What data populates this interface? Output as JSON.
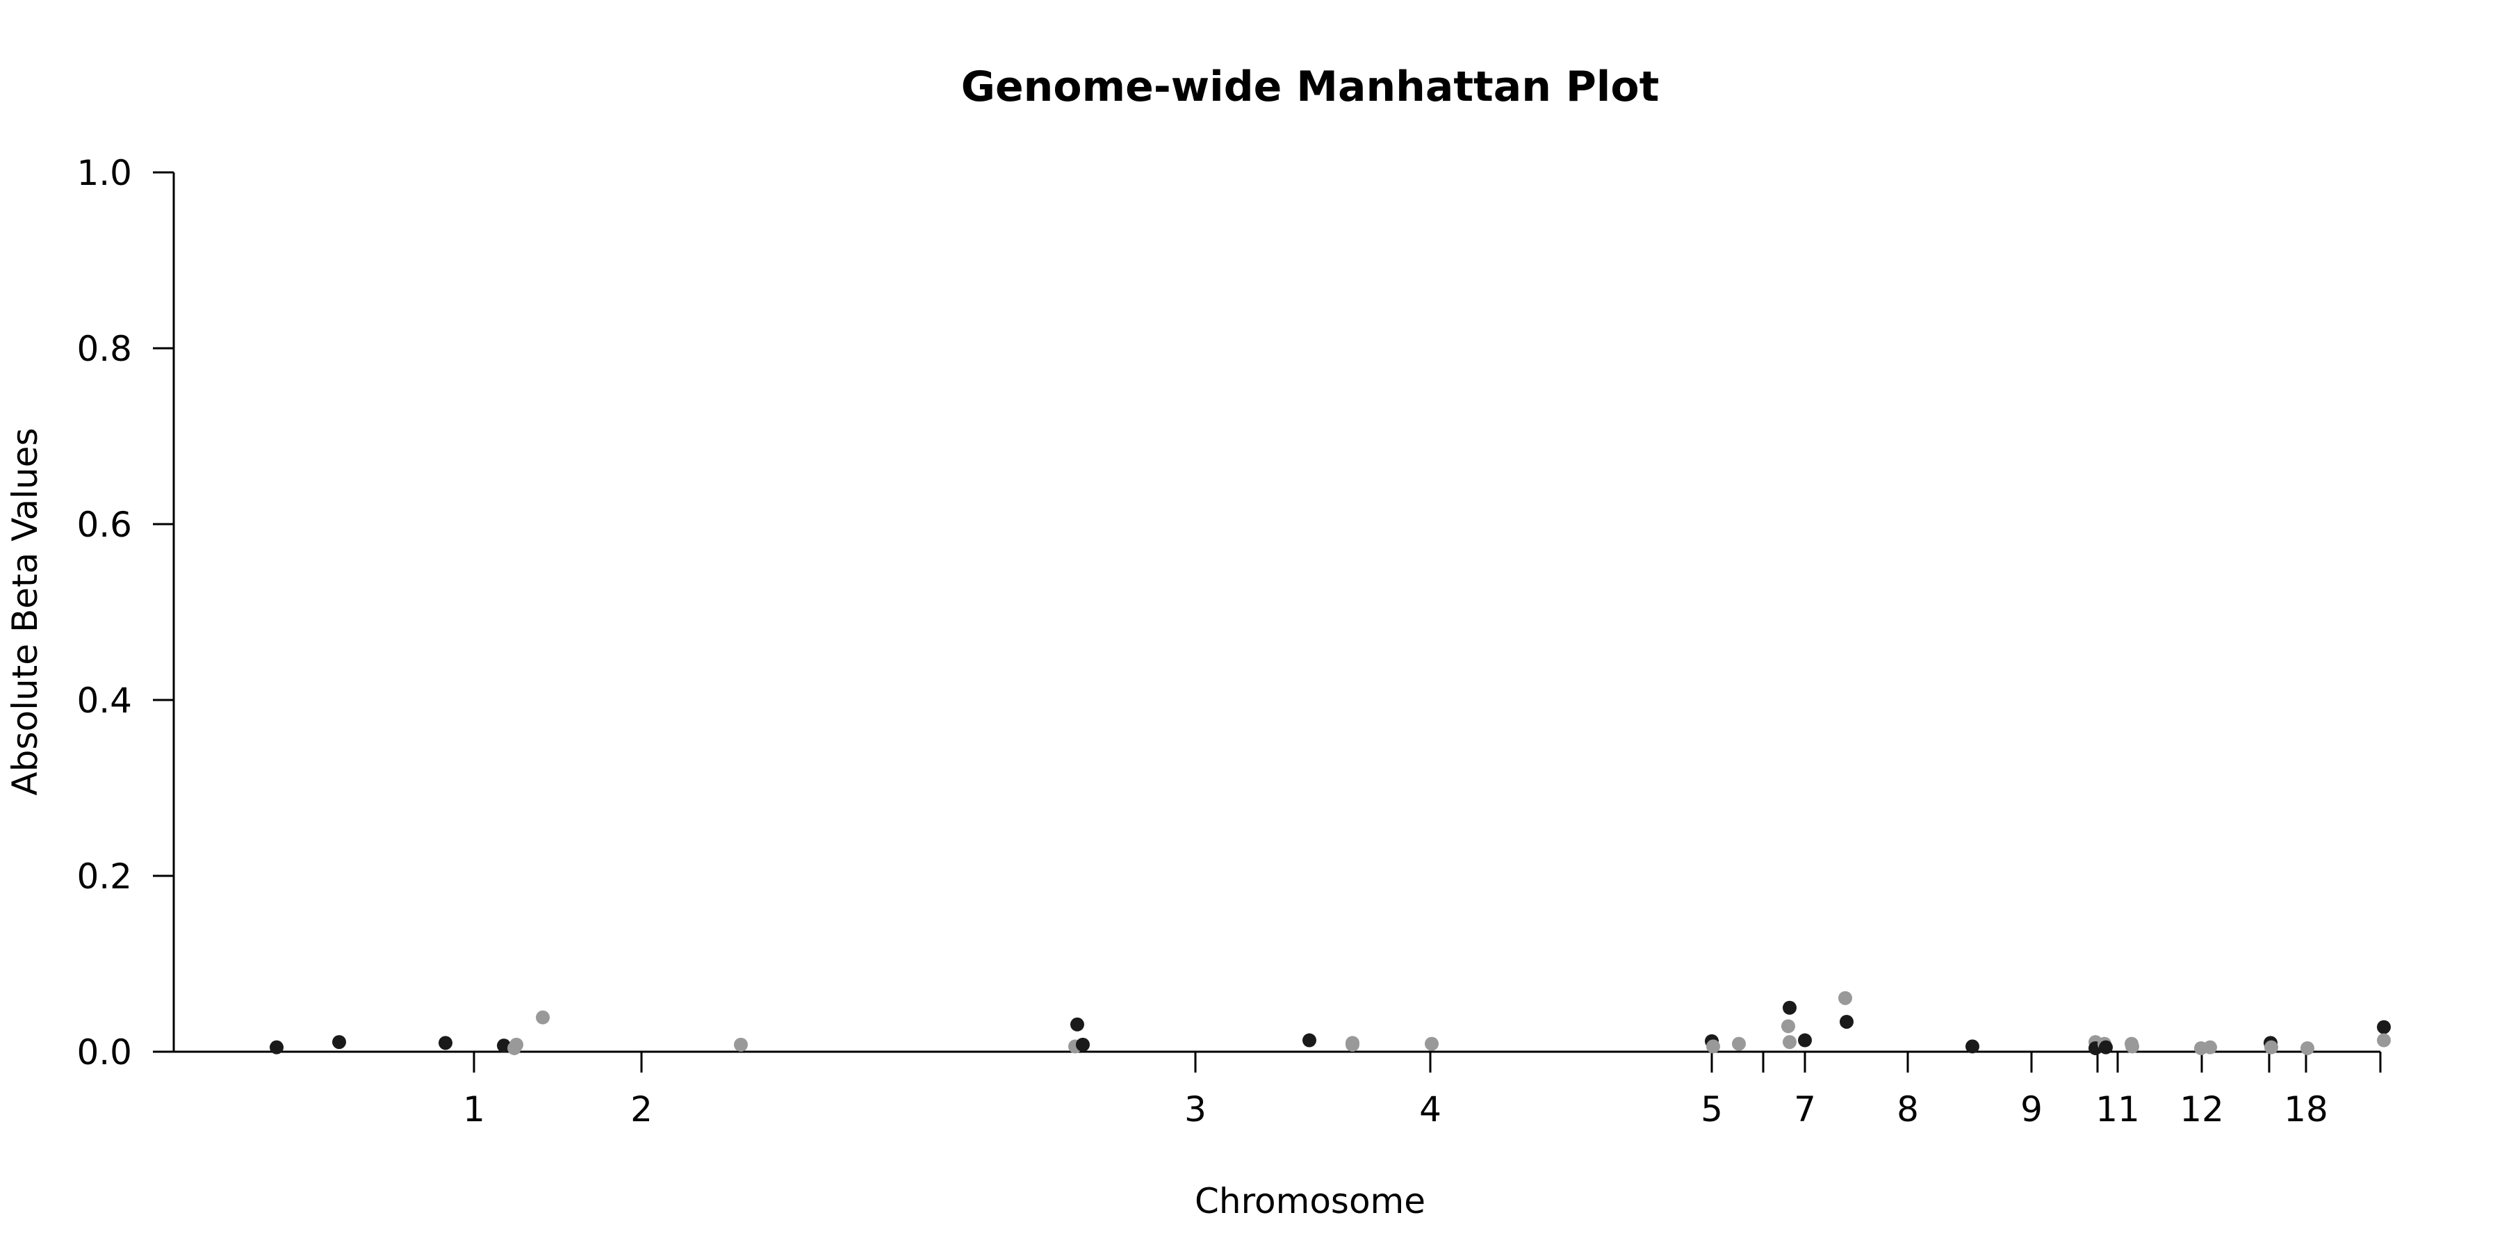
{
  "chart_data": {
    "type": "scatter",
    "title": "Genome-wide Manhattan Plot",
    "xlabel": "Chromosome",
    "ylabel": "Absolute Beta Values",
    "ylim": [
      0,
      1.0
    ],
    "y_ticks": [
      "0.0",
      "0.2",
      "0.4",
      "0.6",
      "0.8",
      "1.0"
    ],
    "x_tick_labels": [
      "1",
      "2",
      "3",
      "4",
      "5",
      "",
      "7",
      "8",
      "9",
      "",
      "11",
      "12",
      "",
      "18",
      ""
    ],
    "grid": false,
    "legend": "none",
    "colors": {
      "dark": "#1a1a1a",
      "light": "#999999",
      "axis": "#000000"
    },
    "points": [
      {
        "chrom": "1",
        "beta": 0.005,
        "color": "dark"
      },
      {
        "chrom": "1",
        "beta": 0.011,
        "color": "dark"
      },
      {
        "chrom": "1",
        "beta": 0.01,
        "color": "dark"
      },
      {
        "chrom": "1",
        "beta": 0.007,
        "color": "dark"
      },
      {
        "chrom": "1",
        "beta": 0.008,
        "color": "light"
      },
      {
        "chrom": "1",
        "beta": 0.004,
        "color": "light"
      },
      {
        "chrom": "1",
        "beta": 0.039,
        "color": "light"
      },
      {
        "chrom": "2",
        "beta": 0.008,
        "color": "light"
      },
      {
        "chrom": "2",
        "beta": 0.031,
        "color": "dark"
      },
      {
        "chrom": "2",
        "beta": 0.006,
        "color": "light"
      },
      {
        "chrom": "2",
        "beta": 0.008,
        "color": "dark"
      },
      {
        "chrom": "3",
        "beta": 0.013,
        "color": "dark"
      },
      {
        "chrom": "3",
        "beta": 0.01,
        "color": "light"
      },
      {
        "chrom": "3",
        "beta": 0.008,
        "color": "light"
      },
      {
        "chrom": "4",
        "beta": 0.009,
        "color": "light"
      },
      {
        "chrom": "5",
        "beta": 0.012,
        "color": "dark"
      },
      {
        "chrom": "5",
        "beta": 0.006,
        "color": "light"
      },
      {
        "chrom": "5",
        "beta": 0.009,
        "color": "light"
      },
      {
        "chrom": "6",
        "beta": 0.05,
        "color": "dark"
      },
      {
        "chrom": "6",
        "beta": 0.029,
        "color": "light"
      },
      {
        "chrom": "6",
        "beta": 0.011,
        "color": "light"
      },
      {
        "chrom": "7",
        "beta": 0.013,
        "color": "dark"
      },
      {
        "chrom": "7",
        "beta": 0.061,
        "color": "light"
      },
      {
        "chrom": "7",
        "beta": 0.034,
        "color": "dark"
      },
      {
        "chrom": "8",
        "beta": 0.006,
        "color": "dark"
      },
      {
        "chrom": "10",
        "beta": 0.011,
        "color": "light"
      },
      {
        "chrom": "10",
        "beta": 0.004,
        "color": "dark"
      },
      {
        "chrom": "10",
        "beta": 0.009,
        "color": "light"
      },
      {
        "chrom": "10",
        "beta": 0.005,
        "color": "dark"
      },
      {
        "chrom": "11",
        "beta": 0.009,
        "color": "light"
      },
      {
        "chrom": "11",
        "beta": 0.006,
        "color": "light"
      },
      {
        "chrom": "12",
        "beta": 0.004,
        "color": "light"
      },
      {
        "chrom": "12",
        "beta": 0.005,
        "color": "light"
      },
      {
        "chrom": "13",
        "beta": 0.01,
        "color": "dark"
      },
      {
        "chrom": "13",
        "beta": 0.005,
        "color": "light"
      },
      {
        "chrom": "18",
        "beta": 0.004,
        "color": "light"
      },
      {
        "chrom": "19",
        "beta": 0.028,
        "color": "dark"
      },
      {
        "chrom": "19",
        "beta": 0.013,
        "color": "light"
      }
    ]
  }
}
